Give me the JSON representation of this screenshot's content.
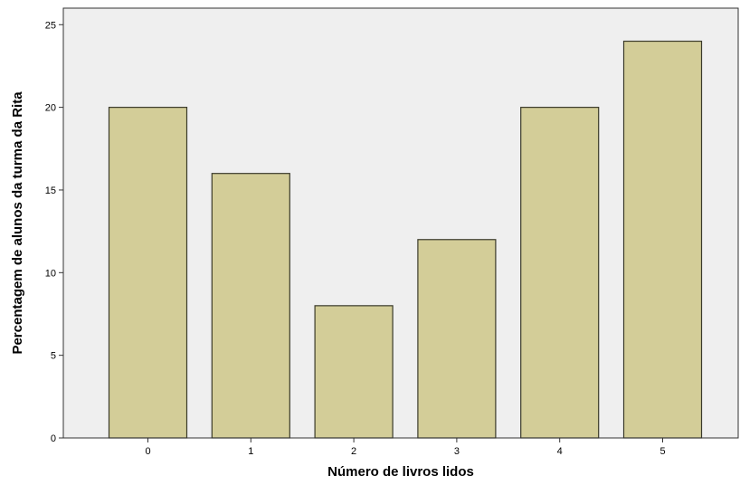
{
  "chart_data": {
    "type": "bar",
    "categories": [
      "0",
      "1",
      "2",
      "3",
      "4",
      "5"
    ],
    "values": [
      20,
      16,
      8,
      12,
      20,
      24
    ],
    "title": "",
    "xlabel": "Número de livros lidos",
    "ylabel": "Percentagem de alunos da turma da Rita",
    "ylim": [
      0,
      26
    ],
    "yticks": [
      "0",
      "5",
      "10",
      "15",
      "20",
      "25"
    ],
    "grid": false,
    "colors": {
      "bar_fill": "#d3cd98",
      "bar_stroke": "#3a3a2a",
      "plot_background": "#efefef",
      "axis": "#333333"
    }
  }
}
